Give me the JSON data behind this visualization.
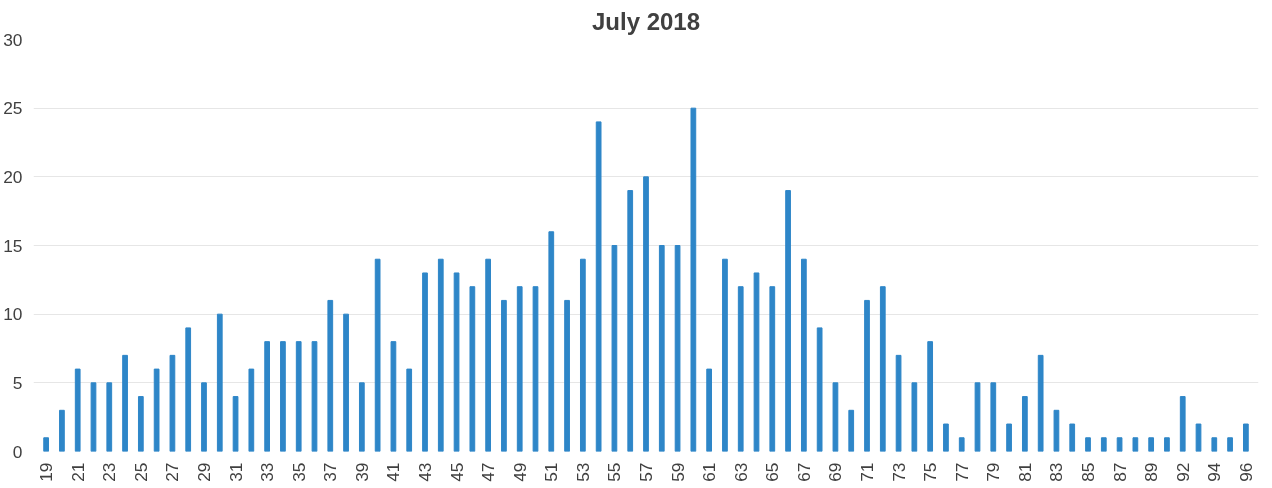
{
  "chart_data": {
    "type": "bar",
    "title": "July 2018",
    "categories": [
      "19",
      null,
      "21",
      null,
      "23",
      null,
      "25",
      null,
      "27",
      null,
      "29",
      null,
      "31",
      null,
      "33",
      null,
      "35",
      null,
      "37",
      null,
      "39",
      null,
      "41",
      null,
      "43",
      null,
      "45",
      null,
      "47",
      null,
      "49",
      null,
      "51",
      null,
      "53",
      null,
      "55",
      null,
      "57",
      null,
      "59",
      null,
      "61",
      null,
      "63",
      null,
      "65",
      null,
      "67",
      null,
      "69",
      null,
      "71",
      null,
      "73",
      null,
      "75",
      null,
      "77",
      null,
      "79",
      null,
      "81",
      null,
      "83",
      null,
      "85",
      null,
      "87",
      null,
      "89",
      null,
      "92",
      null,
      "94",
      null,
      "96"
    ],
    "values": [
      1,
      3,
      6,
      5,
      5,
      7,
      4,
      6,
      7,
      9,
      5,
      10,
      4,
      6,
      8,
      8,
      8,
      8,
      11,
      10,
      5,
      14,
      8,
      6,
      13,
      14,
      13,
      12,
      14,
      11,
      12,
      12,
      16,
      11,
      14,
      24,
      15,
      19,
      20,
      15,
      15,
      25,
      6,
      14,
      12,
      13,
      12,
      19,
      14,
      9,
      5,
      3,
      11,
      12,
      7,
      5,
      8,
      2,
      1,
      5,
      5,
      2,
      4,
      7,
      3,
      2,
      1,
      1,
      1,
      1,
      1,
      1,
      4,
      2,
      1,
      1,
      2
    ],
    "color": "#2e86c8",
    "ylim": [
      0,
      30
    ],
    "yticks": [
      0,
      5,
      10,
      15,
      20,
      25,
      30
    ],
    "grid": "y"
  }
}
